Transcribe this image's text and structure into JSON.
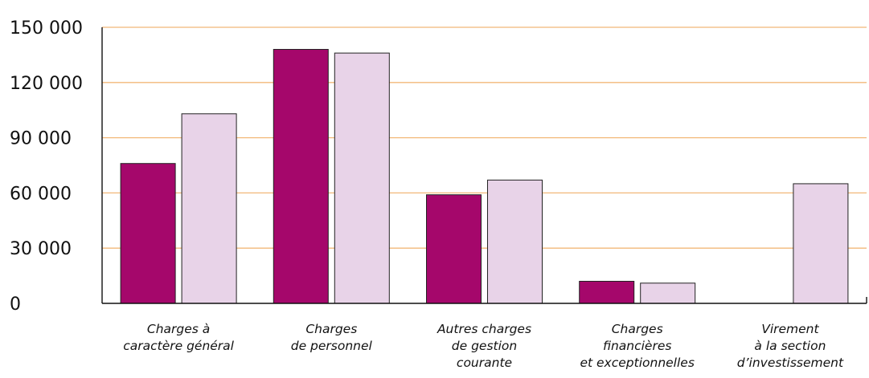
{
  "chart_data": {
    "type": "bar",
    "title": "",
    "xlabel": "",
    "ylabel": "",
    "ylim": [
      0,
      150000
    ],
    "yticks": [
      0,
      30000,
      60000,
      90000,
      120000,
      150000
    ],
    "ytick_labels": [
      "0",
      "30 000",
      "60 000",
      "90 000",
      "120 000",
      "150 000"
    ],
    "grid": true,
    "legend": "none",
    "categories": [
      [
        "Charges à",
        "caractère général"
      ],
      [
        "Charges",
        "de personnel"
      ],
      [
        "Autres charges",
        "de gestion",
        "courante"
      ],
      [
        "Charges",
        "financières",
        "et exceptionnelles"
      ],
      [
        "Virement",
        "à la section",
        "d’investissement"
      ]
    ],
    "series": [
      {
        "color": "#a5076b",
        "values": [
          76000,
          138000,
          59000,
          12000,
          0
        ]
      },
      {
        "color": "#e8d3e8",
        "values": [
          103000,
          136000,
          67000,
          11000,
          65000
        ]
      }
    ],
    "grid_color": "#f2b879"
  }
}
